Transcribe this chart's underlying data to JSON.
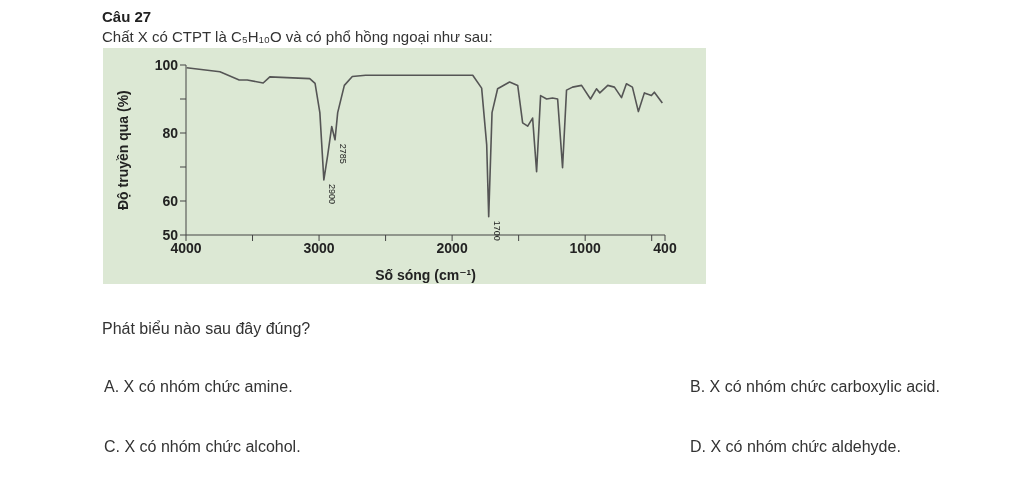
{
  "chart_data": {
    "type": "line",
    "title": "Câu 27",
    "subtitle": "Chất X có CTPT là C₅H₁₀O và có phổ hồng ngoại như sau:",
    "xlabel": "Số sóng (cm⁻¹)",
    "ylabel": "Độ truyền qua (%)",
    "xlim": [
      4000,
      400
    ],
    "xticks": [
      4000,
      {
        "value": 3500,
        "label": null
      },
      3000,
      {
        "value": 2500,
        "label": null
      },
      2000,
      {
        "value": 1500,
        "label": null
      },
      1000,
      {
        "value": 500,
        "label": null
      },
      400
    ],
    "ylim": [
      50,
      100
    ],
    "yticks": [
      50,
      60,
      {
        "value": 70,
        "label": null
      },
      80,
      {
        "value": 90,
        "label": null
      },
      100
    ],
    "grid": false,
    "marker": "none",
    "line_style": "solid",
    "series": [
      {
        "color": "#555555",
        "x": [
          3995,
          3745,
          3600,
          3540,
          3420,
          3370,
          3070,
          3030,
          2994,
          2964,
          2935,
          2905,
          2880,
          2860,
          2810,
          2750,
          2650,
          1845,
          1778,
          1740,
          1725,
          1700,
          1658,
          1568,
          1507,
          1470,
          1432,
          1395,
          1365,
          1335,
          1290,
          1245,
          1207,
          1170,
          1140,
          1095,
          1027,
          960,
          915,
          890,
          830,
          780,
          727,
          690,
          645,
          600,
          555,
          502,
          480,
          420
        ],
        "values": [
          99.2,
          98,
          95.6,
          95.6,
          94.7,
          96.5,
          96,
          94.6,
          86,
          66.2,
          73.5,
          81.9,
          78,
          86,
          94,
          96.6,
          97,
          97,
          93.2,
          76.5,
          55.4,
          86,
          93,
          95,
          94,
          83,
          82,
          84.4,
          68.6,
          91,
          90,
          90.3,
          90,
          69.8,
          92.6,
          93.5,
          94,
          90,
          93,
          91.8,
          94,
          93.5,
          90.4,
          94.5,
          93.5,
          86.3,
          91.8,
          91,
          92,
          88.8
        ]
      }
    ],
    "annotations": [
      "Phát biểu nào sau đây đúng?",
      "A. X có nhóm chức amine.",
      "B. X có nhóm chức carboxylic acid.",
      "C. X có nhóm chức alcohol.",
      "D. X có nhóm chức aldehyde.",
      {
        "text": "2900",
        "x": 2964,
        "y": 66.2
      },
      {
        "text": "2785",
        "x": 2880,
        "y": 78
      },
      {
        "text": "1700",
        "x": 1725,
        "y": 55.4
      }
    ]
  }
}
